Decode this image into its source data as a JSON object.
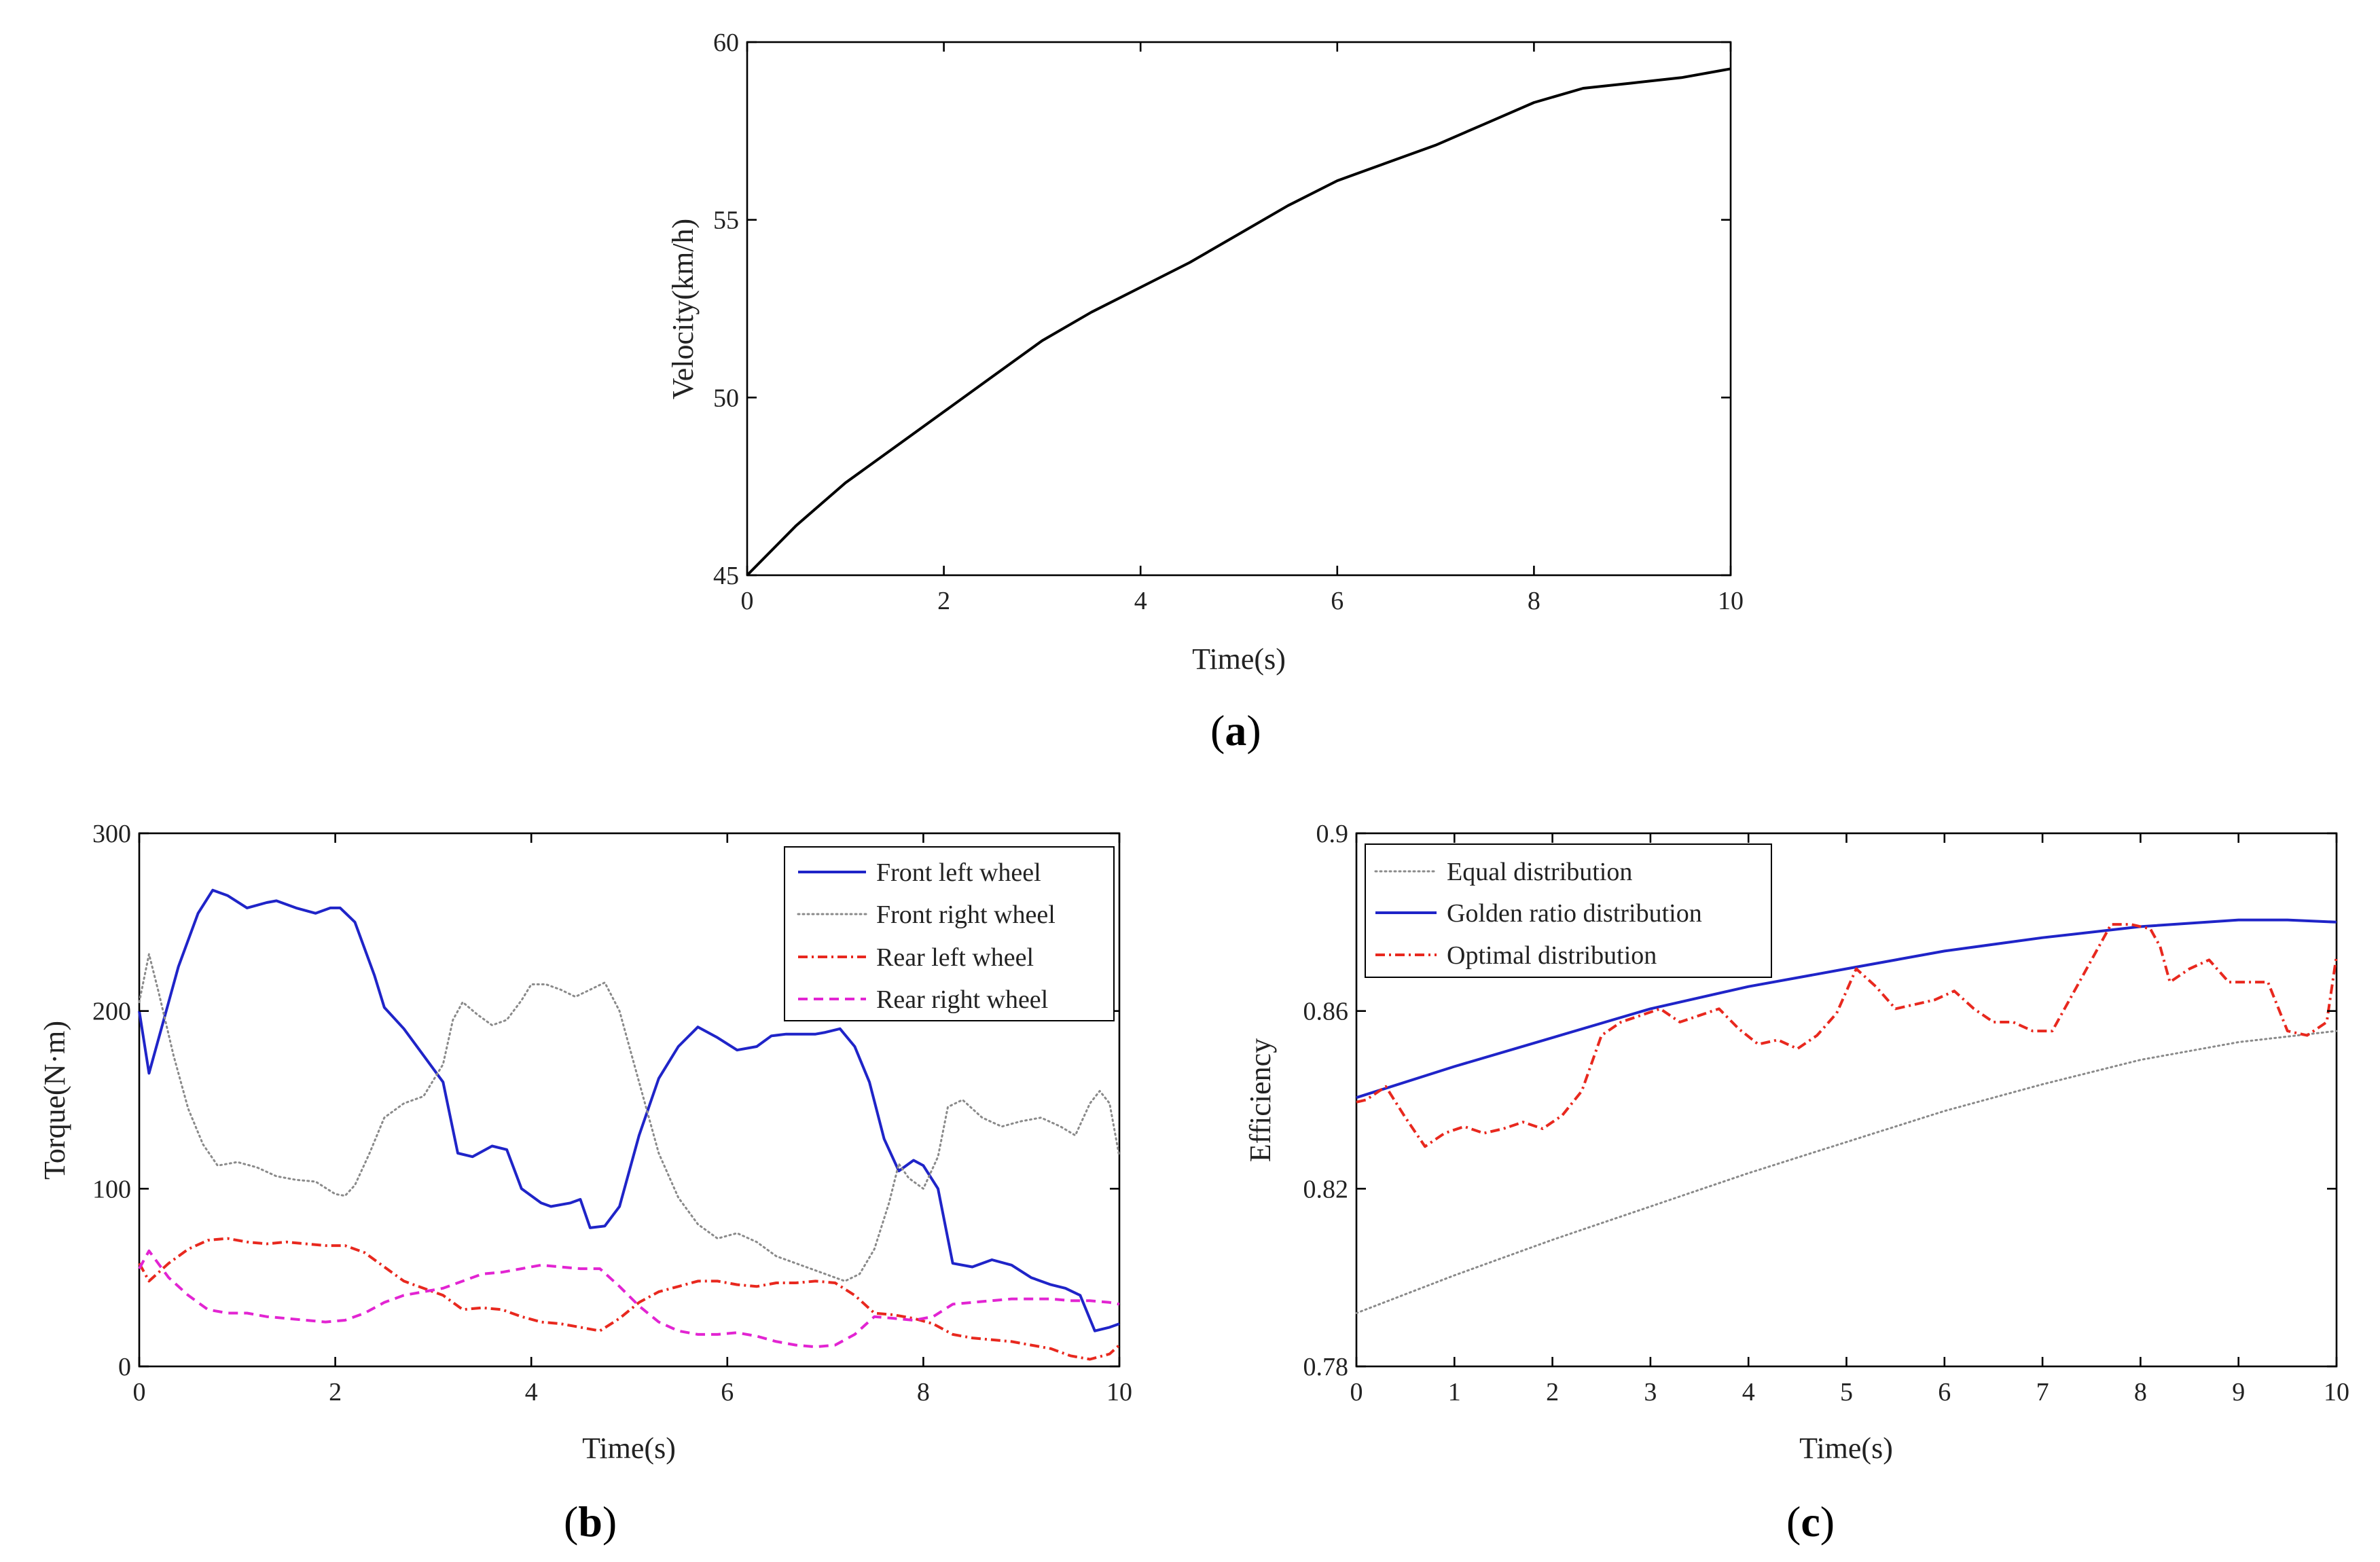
{
  "chart_data": [
    {
      "type": "line",
      "panel_label": "a",
      "xlabel": "Time(s)",
      "ylabel": "Velocity(km/h)",
      "xlim": [
        0,
        10
      ],
      "ylim": [
        45,
        60
      ],
      "xticks": [
        0,
        2,
        4,
        6,
        8,
        10
      ],
      "yticks": [
        45,
        50,
        55,
        60
      ],
      "grid": false,
      "series": [
        {
          "color": "#000000",
          "style": "solid",
          "x": [
            0,
            0.5,
            1,
            1.5,
            2,
            2.5,
            3,
            3.5,
            4,
            4.5,
            5,
            5.5,
            6,
            6.5,
            7,
            7.5,
            8,
            8.5,
            9,
            9.5,
            10
          ],
          "y": [
            45,
            46.4,
            47.6,
            48.6,
            49.6,
            50.6,
            51.6,
            52.4,
            53.1,
            53.8,
            54.6,
            55.4,
            56.1,
            56.6,
            57.1,
            57.7,
            58.3,
            58.7,
            58.85,
            59,
            59.25
          ]
        }
      ]
    },
    {
      "type": "line",
      "panel_label": "b",
      "xlabel": "Time(s)",
      "ylabel": "Torque(N·m)",
      "xlim": [
        0,
        10
      ],
      "ylim": [
        0,
        300
      ],
      "xticks": [
        0,
        2,
        4,
        6,
        8,
        10
      ],
      "yticks": [
        0,
        100,
        200,
        300
      ],
      "grid": false,
      "legend_position": "top-right",
      "series": [
        {
          "name": "Front left wheel",
          "color": "#1f24c8",
          "style": "solid",
          "x": [
            0,
            0.1,
            0.2,
            0.4,
            0.6,
            0.75,
            0.9,
            1.1,
            1.3,
            1.4,
            1.6,
            1.8,
            1.95,
            2.05,
            2.2,
            2.4,
            2.5,
            2.7,
            2.9,
            3.1,
            3.25,
            3.4,
            3.6,
            3.75,
            3.9,
            4.1,
            4.2,
            4.4,
            4.5,
            4.6,
            4.75,
            4.9,
            5.1,
            5.3,
            5.5,
            5.7,
            5.9,
            6.1,
            6.3,
            6.45,
            6.6,
            6.9,
            7.0,
            7.15,
            7.3,
            7.45,
            7.6,
            7.75,
            7.9,
            8.0,
            8.15,
            8.3,
            8.5,
            8.7,
            8.9,
            9.1,
            9.3,
            9.45,
            9.6,
            9.75,
            9.9,
            10
          ],
          "y": [
            200,
            165,
            185,
            225,
            255,
            268,
            265,
            258,
            261,
            262,
            258,
            255,
            258,
            258,
            250,
            220,
            202,
            190,
            175,
            160,
            120,
            118,
            124,
            122,
            100,
            92,
            90,
            92,
            94,
            78,
            79,
            90,
            130,
            162,
            180,
            191,
            185,
            178,
            180,
            186,
            187,
            187,
            188,
            190,
            180,
            160,
            128,
            110,
            116,
            113,
            100,
            58,
            56,
            60,
            57,
            50,
            46,
            44,
            40,
            20,
            22,
            24
          ]
        },
        {
          "name": "Front right wheel",
          "color": "#8a8a8a",
          "style": "dotted",
          "x": [
            0,
            0.1,
            0.2,
            0.35,
            0.5,
            0.65,
            0.8,
            1.0,
            1.2,
            1.4,
            1.6,
            1.8,
            2.0,
            2.1,
            2.2,
            2.35,
            2.5,
            2.7,
            2.9,
            3.1,
            3.2,
            3.3,
            3.45,
            3.6,
            3.75,
            3.9,
            4.0,
            4.15,
            4.3,
            4.45,
            4.6,
            4.75,
            4.9,
            5.1,
            5.3,
            5.5,
            5.7,
            5.9,
            6.1,
            6.3,
            6.5,
            6.7,
            6.9,
            7.1,
            7.2,
            7.35,
            7.5,
            7.65,
            7.75,
            7.85,
            8.0,
            8.15,
            8.25,
            8.4,
            8.6,
            8.8,
            9.0,
            9.2,
            9.4,
            9.55,
            9.7,
            9.8,
            9.9,
            10
          ],
          "y": [
            205,
            232,
            210,
            175,
            145,
            125,
            113,
            115,
            112,
            107,
            105,
            104,
            97,
            96,
            102,
            120,
            140,
            148,
            152,
            170,
            195,
            205,
            198,
            192,
            195,
            206,
            215,
            215,
            212,
            208,
            212,
            216,
            200,
            160,
            120,
            95,
            80,
            72,
            75,
            70,
            62,
            58,
            54,
            50,
            48,
            52,
            66,
            92,
            114,
            106,
            100,
            118,
            146,
            150,
            140,
            135,
            138,
            140,
            135,
            130,
            148,
            155,
            148,
            118
          ]
        },
        {
          "name": "Rear left wheel",
          "color": "#e8281e",
          "style": "dashdot",
          "x": [
            0,
            0.1,
            0.3,
            0.5,
            0.7,
            0.9,
            1.1,
            1.3,
            1.5,
            1.7,
            1.9,
            2.1,
            2.3,
            2.5,
            2.7,
            2.9,
            3.1,
            3.3,
            3.5,
            3.7,
            3.9,
            4.1,
            4.3,
            4.5,
            4.7,
            4.9,
            5.1,
            5.3,
            5.5,
            5.7,
            5.9,
            6.1,
            6.3,
            6.5,
            6.7,
            6.9,
            7.1,
            7.3,
            7.5,
            7.7,
            7.9,
            8.1,
            8.3,
            8.5,
            8.7,
            8.9,
            9.1,
            9.3,
            9.5,
            9.7,
            9.9,
            10
          ],
          "y": [
            58,
            48,
            58,
            66,
            71,
            72,
            70,
            69,
            70,
            69,
            68,
            68,
            64,
            56,
            48,
            44,
            40,
            32,
            33,
            32,
            28,
            25,
            24,
            22,
            20,
            27,
            36,
            42,
            45,
            48,
            48,
            46,
            45,
            47,
            47,
            48,
            47,
            40,
            30,
            29,
            27,
            24,
            18,
            16,
            15,
            14,
            12,
            10,
            6,
            4,
            7,
            12
          ]
        },
        {
          "name": "Rear right wheel",
          "color": "#e224d2",
          "style": "dashed",
          "x": [
            0,
            0.1,
            0.3,
            0.5,
            0.7,
            0.9,
            1.1,
            1.3,
            1.5,
            1.7,
            1.9,
            2.1,
            2.3,
            2.5,
            2.7,
            2.9,
            3.1,
            3.3,
            3.5,
            3.7,
            3.9,
            4.1,
            4.3,
            4.5,
            4.7,
            4.9,
            5.1,
            5.3,
            5.5,
            5.7,
            5.9,
            6.1,
            6.3,
            6.5,
            6.7,
            6.9,
            7.1,
            7.3,
            7.5,
            7.7,
            7.9,
            8.1,
            8.3,
            8.5,
            8.7,
            8.9,
            9.1,
            9.3,
            9.5,
            9.7,
            9.9,
            10
          ],
          "y": [
            55,
            65,
            50,
            40,
            32,
            30,
            30,
            28,
            27,
            26,
            25,
            26,
            30,
            36,
            40,
            42,
            44,
            48,
            52,
            53,
            55,
            57,
            56,
            55,
            55,
            45,
            34,
            25,
            20,
            18,
            18,
            19,
            17,
            14,
            12,
            11,
            12,
            18,
            28,
            27,
            26,
            28,
            35,
            36,
            37,
            38,
            38,
            38,
            37,
            37,
            36,
            35
          ]
        }
      ]
    },
    {
      "type": "line",
      "panel_label": "c",
      "xlabel": "Time(s)",
      "ylabel": "Efficiency",
      "xlim": [
        0,
        10
      ],
      "ylim": [
        0.78,
        0.9
      ],
      "xticks": [
        0,
        1,
        2,
        3,
        4,
        5,
        6,
        7,
        8,
        9,
        10
      ],
      "yticks": [
        0.78,
        0.82,
        0.86,
        0.9
      ],
      "ytick_labels": [
        "0.78",
        "0.82",
        "0.86",
        "0.9"
      ],
      "grid": false,
      "legend_position": "top-left",
      "series": [
        {
          "name": "Equal distribution",
          "color": "#8a8a8a",
          "style": "dotted",
          "x": [
            0,
            1,
            2,
            3,
            4,
            5,
            6,
            7,
            8,
            9,
            10
          ],
          "y": [
            0.792,
            0.8005,
            0.8085,
            0.816,
            0.8235,
            0.8305,
            0.8375,
            0.8435,
            0.849,
            0.853,
            0.8555
          ]
        },
        {
          "name": "Golden ratio distribution",
          "color": "#1f24c8",
          "style": "solid",
          "x": [
            0,
            1,
            2,
            3,
            4,
            5,
            6,
            7,
            8,
            9,
            9.5,
            10
          ],
          "y": [
            0.8405,
            0.8475,
            0.854,
            0.8605,
            0.8655,
            0.8695,
            0.8735,
            0.8765,
            0.879,
            0.8805,
            0.8805,
            0.88
          ]
        },
        {
          "name": "Optimal distribution",
          "color": "#e8281e",
          "style": "dashdot",
          "x": [
            0,
            0.1,
            0.3,
            0.5,
            0.7,
            0.8,
            0.9,
            1.1,
            1.3,
            1.5,
            1.7,
            1.9,
            2.1,
            2.3,
            2.5,
            2.7,
            2.9,
            3.1,
            3.3,
            3.5,
            3.7,
            3.9,
            4.1,
            4.3,
            4.5,
            4.7,
            4.9,
            5.1,
            5.3,
            5.5,
            5.7,
            5.9,
            6.1,
            6.3,
            6.5,
            6.7,
            6.9,
            7.1,
            7.3,
            7.5,
            7.7,
            7.9,
            8.1,
            8.2,
            8.3,
            8.5,
            8.7,
            8.9,
            9.1,
            9.3,
            9.5,
            9.7,
            9.9,
            10
          ],
          "y": [
            0.8395,
            0.84,
            0.843,
            0.836,
            0.8295,
            0.831,
            0.8325,
            0.834,
            0.8325,
            0.8335,
            0.835,
            0.8335,
            0.8365,
            0.842,
            0.8545,
            0.8575,
            0.859,
            0.8605,
            0.8575,
            0.859,
            0.8605,
            0.856,
            0.8525,
            0.8535,
            0.8515,
            0.8545,
            0.8595,
            0.8695,
            0.8655,
            0.8605,
            0.8615,
            0.8625,
            0.8645,
            0.8605,
            0.8575,
            0.8575,
            0.8555,
            0.8555,
            0.8635,
            0.8715,
            0.8795,
            0.8795,
            0.8785,
            0.8745,
            0.8665,
            0.8695,
            0.8715,
            0.8665,
            0.8665,
            0.8665,
            0.8555,
            0.8545,
            0.8575,
            0.8725
          ]
        }
      ]
    }
  ]
}
